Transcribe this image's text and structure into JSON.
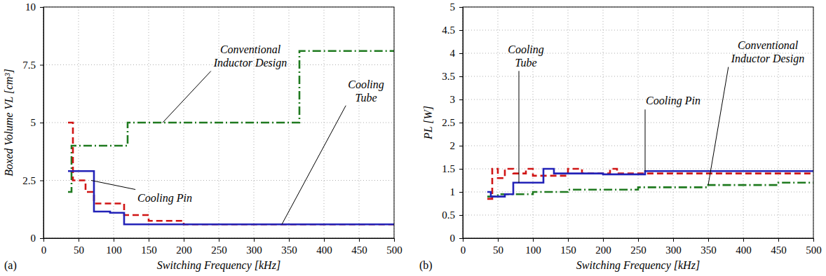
{
  "chart_data": [
    {
      "type": "line",
      "panel_label": "(a)",
      "xlabel": "Switching Frequency [kHz]",
      "ylabel": "Boxed Volume VL [cm³]",
      "xlim": [
        0,
        500
      ],
      "xticks": [
        0,
        50,
        100,
        150,
        200,
        250,
        300,
        350,
        400,
        450,
        500
      ],
      "ylim": [
        0,
        10
      ],
      "yticks": [
        0,
        2.5,
        5,
        7.5,
        10
      ],
      "grid": true,
      "series": [
        {
          "color": "#1f7a1f",
          "line_style": "dashdot",
          "x": [
            35,
            40,
            120,
            365,
            500
          ],
          "values": [
            2,
            4,
            5,
            8.1,
            8.1
          ]
        },
        {
          "color": "#d01515",
          "line_style": "dashed",
          "x": [
            35,
            42,
            60,
            72,
            115,
            150,
            200,
            500
          ],
          "values": [
            5,
            2.5,
            2.0,
            1.5,
            1.0,
            0.75,
            0.6,
            0.6
          ]
        },
        {
          "color": "#2323b8",
          "line_style": "solid",
          "x": [
            35,
            72,
            95,
            115,
            500
          ],
          "values": [
            2.9,
            1.15,
            1.1,
            0.6,
            0.6
          ]
        }
      ],
      "annotations": [
        {
          "text": "Conventional Inductor Design",
          "x": 170,
          "y": 5
        },
        {
          "text": "Cooling Pin",
          "x": 68,
          "y": 2.5
        },
        {
          "text": "Cooling Tube",
          "x": 340,
          "y": 0.6
        }
      ]
    },
    {
      "type": "line",
      "panel_label": "(b)",
      "xlabel": "Switching Frequency [kHz]",
      "ylabel": "PL [W]",
      "xlim": [
        0,
        500
      ],
      "xticks": [
        0,
        50,
        100,
        150,
        200,
        250,
        300,
        350,
        400,
        450,
        500
      ],
      "ylim": [
        0,
        5
      ],
      "yticks": [
        0,
        0.5,
        1,
        1.5,
        2,
        2.5,
        3,
        3.5,
        4,
        4.5,
        5
      ],
      "grid": true,
      "series": [
        {
          "color": "#1f7a1f",
          "line_style": "dashdot",
          "x": [
            35,
            50,
            100,
            150,
            250,
            350,
            450,
            500
          ],
          "values": [
            0.9,
            0.95,
            1.0,
            1.05,
            1.1,
            1.15,
            1.2,
            1.2
          ]
        },
        {
          "color": "#d01515",
          "line_style": "dashed",
          "x": [
            35,
            42,
            50,
            60,
            72,
            90,
            100,
            150,
            170,
            210,
            220,
            500
          ],
          "values": [
            0.85,
            1.5,
            1.3,
            1.5,
            1.4,
            1.5,
            1.35,
            1.5,
            1.4,
            1.5,
            1.4,
            1.4
          ]
        },
        {
          "color": "#2323b8",
          "line_style": "solid",
          "x": [
            35,
            40,
            60,
            72,
            115,
            130,
            200,
            260,
            500
          ],
          "values": [
            1.0,
            0.9,
            0.95,
            1.2,
            1.5,
            1.4,
            1.38,
            1.45,
            1.47
          ]
        }
      ],
      "annotations": [
        {
          "text": "Cooling Tube",
          "x": 80,
          "y": 1.2
        },
        {
          "text": "Cooling Pin",
          "x": 260,
          "y": 1.45
        },
        {
          "text": "Conventional Inductor Design",
          "x": 350,
          "y": 1.15
        }
      ]
    }
  ]
}
